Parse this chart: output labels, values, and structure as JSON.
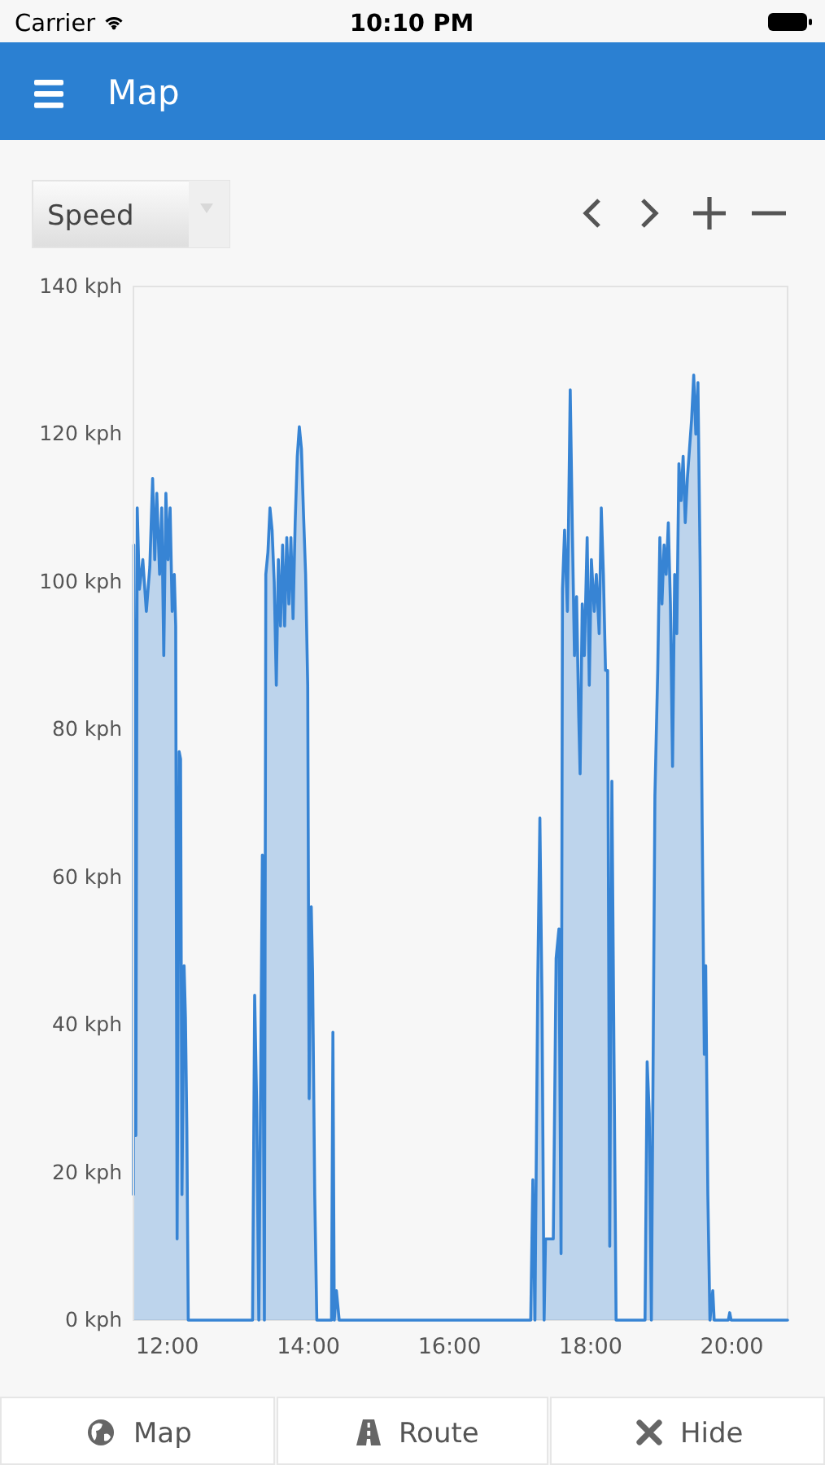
{
  "chart_data": {
    "type": "area",
    "title": "Map",
    "ylabel": "Speed",
    "annotations": [
      "Carrier",
      "10:10 PM",
      "Map",
      "Route",
      "Hide"
    ],
    "color": "#3784d4",
    "xlim": [
      11.52,
      20.79
    ],
    "ylim": [
      0,
      140
    ],
    "xticks": [
      {
        "value": 12,
        "label": "12:00"
      },
      {
        "value": 14,
        "label": "14:00"
      },
      {
        "value": 16,
        "label": "16:00"
      },
      {
        "value": 18,
        "label": "18:00"
      },
      {
        "value": 20,
        "label": "20:00"
      }
    ],
    "yticks": [
      {
        "value": 0,
        "label": "0 kph"
      },
      {
        "value": 20,
        "label": "20 kph"
      },
      {
        "value": 40,
        "label": "40 kph"
      },
      {
        "value": 60,
        "label": "60 kph"
      },
      {
        "value": 80,
        "label": "80 kph"
      },
      {
        "value": 100,
        "label": "100 kph"
      },
      {
        "value": 120,
        "label": "120 kph"
      },
      {
        "value": 140,
        "label": "140 kph"
      }
    ],
    "x": [
      11.52,
      11.525,
      11.554,
      11.574,
      11.604,
      11.653,
      11.703,
      11.752,
      11.792,
      11.822,
      11.851,
      11.891,
      11.921,
      11.95,
      11.98,
      12.01,
      12.04,
      12.069,
      12.099,
      12.119,
      12.139,
      12.168,
      12.188,
      12.208,
      12.238,
      12.257,
      12.277,
      12.297,
      13.208,
      13.238,
      13.267,
      13.297,
      13.347,
      13.376,
      13.396,
      13.426,
      13.455,
      13.485,
      13.515,
      13.545,
      13.574,
      13.604,
      13.634,
      13.663,
      13.693,
      13.723,
      13.752,
      13.782,
      13.812,
      13.842,
      13.871,
      13.901,
      13.931,
      13.96,
      13.99,
      14.01,
      14.04,
      14.059,
      14.089,
      14.119,
      14.327,
      14.347,
      14.366,
      14.396,
      14.436,
      17.15,
      17.18,
      17.21,
      17.25,
      17.28,
      17.31,
      17.34,
      17.36,
      17.47,
      17.51,
      17.55,
      17.58,
      17.6,
      17.63,
      17.67,
      17.71,
      17.74,
      17.77,
      17.8,
      17.83,
      17.85,
      17.88,
      17.91,
      17.95,
      17.98,
      18.01,
      18.05,
      18.08,
      18.12,
      18.15,
      18.18,
      18.21,
      18.24,
      18.27,
      18.3,
      18.33,
      18.36,
      18.77,
      18.8,
      18.83,
      18.86,
      18.91,
      18.95,
      18.98,
      19.01,
      19.04,
      19.07,
      19.1,
      19.13,
      19.16,
      19.19,
      19.22,
      19.25,
      19.28,
      19.31,
      19.34,
      19.37,
      19.4,
      19.43,
      19.46,
      19.49,
      19.52,
      19.55,
      19.58,
      19.61,
      19.63,
      19.66,
      19.69,
      19.73,
      19.75,
      19.95,
      19.97,
      19.99,
      20.79
    ],
    "values": [
      17,
      105,
      25,
      110,
      99,
      103,
      96,
      102,
      114,
      103,
      112,
      101,
      110,
      90,
      112,
      103,
      110,
      96,
      101,
      94,
      11,
      77,
      76,
      17,
      48,
      41,
      26,
      0,
      0,
      44,
      29,
      0,
      63,
      0,
      101,
      104,
      110,
      107,
      100,
      86,
      103,
      94,
      105,
      94,
      106,
      97,
      106,
      95,
      108,
      117,
      121,
      118,
      109,
      101,
      86,
      30,
      56,
      47,
      17,
      0,
      0,
      39,
      0,
      4,
      0,
      0,
      19,
      0,
      46,
      68,
      43,
      0,
      11,
      11,
      49,
      53,
      9,
      99,
      107,
      96,
      126,
      107,
      90,
      98,
      82,
      74,
      97,
      90,
      106,
      86,
      103,
      96,
      101,
      93,
      110,
      101,
      88,
      88,
      10,
      73,
      36,
      0,
      0,
      35,
      28,
      0,
      71,
      88,
      106,
      97,
      105,
      101,
      108,
      97,
      75,
      101,
      93,
      116,
      111,
      117,
      108,
      114,
      118,
      122,
      128,
      120,
      127,
      103,
      67,
      36,
      48,
      17,
      0,
      4,
      0,
      0,
      1,
      0,
      0
    ]
  }
}
